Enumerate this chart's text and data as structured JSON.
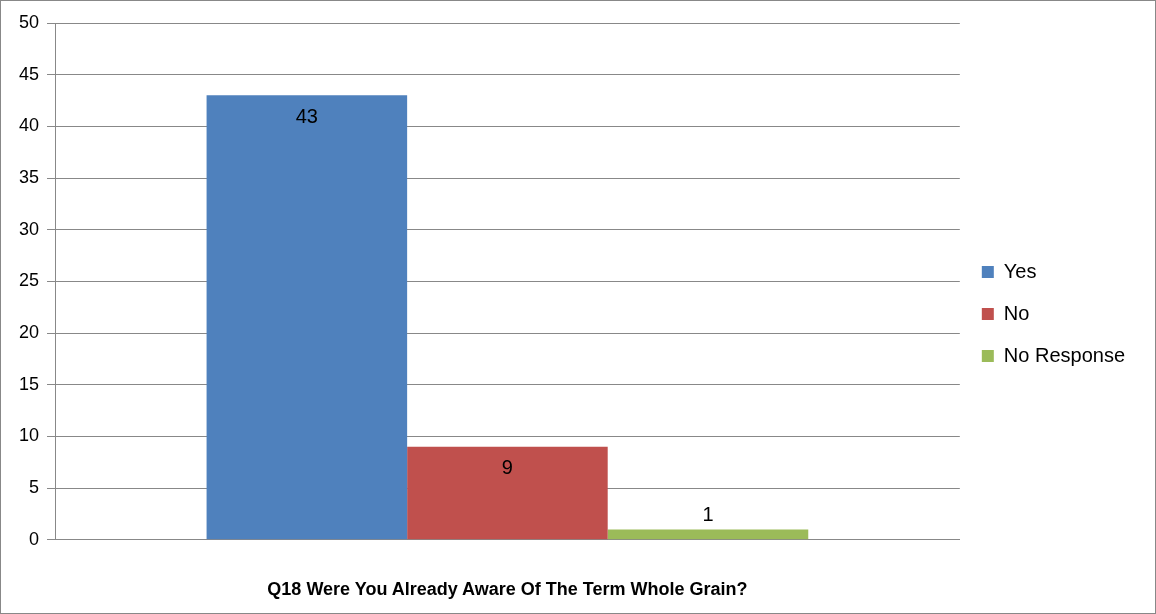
{
  "chart_data": {
    "type": "bar",
    "xlabel": "Q18 Were You Already Aware Of The Term Whole Grain?",
    "categories": [
      null
    ],
    "series": [
      {
        "name": "Yes",
        "color": "#4f81bd",
        "values": [
          43
        ]
      },
      {
        "name": "No",
        "color": "#c0504d",
        "values": [
          9
        ]
      },
      {
        "name": "No Response",
        "color": "#9bbb59",
        "values": [
          1
        ]
      }
    ],
    "ylim": [
      0,
      50
    ],
    "yticks": [
      0,
      5,
      10,
      15,
      20,
      25,
      30,
      35,
      40,
      45,
      50
    ],
    "grid": "y",
    "legend": "right",
    "data_labels": true
  }
}
